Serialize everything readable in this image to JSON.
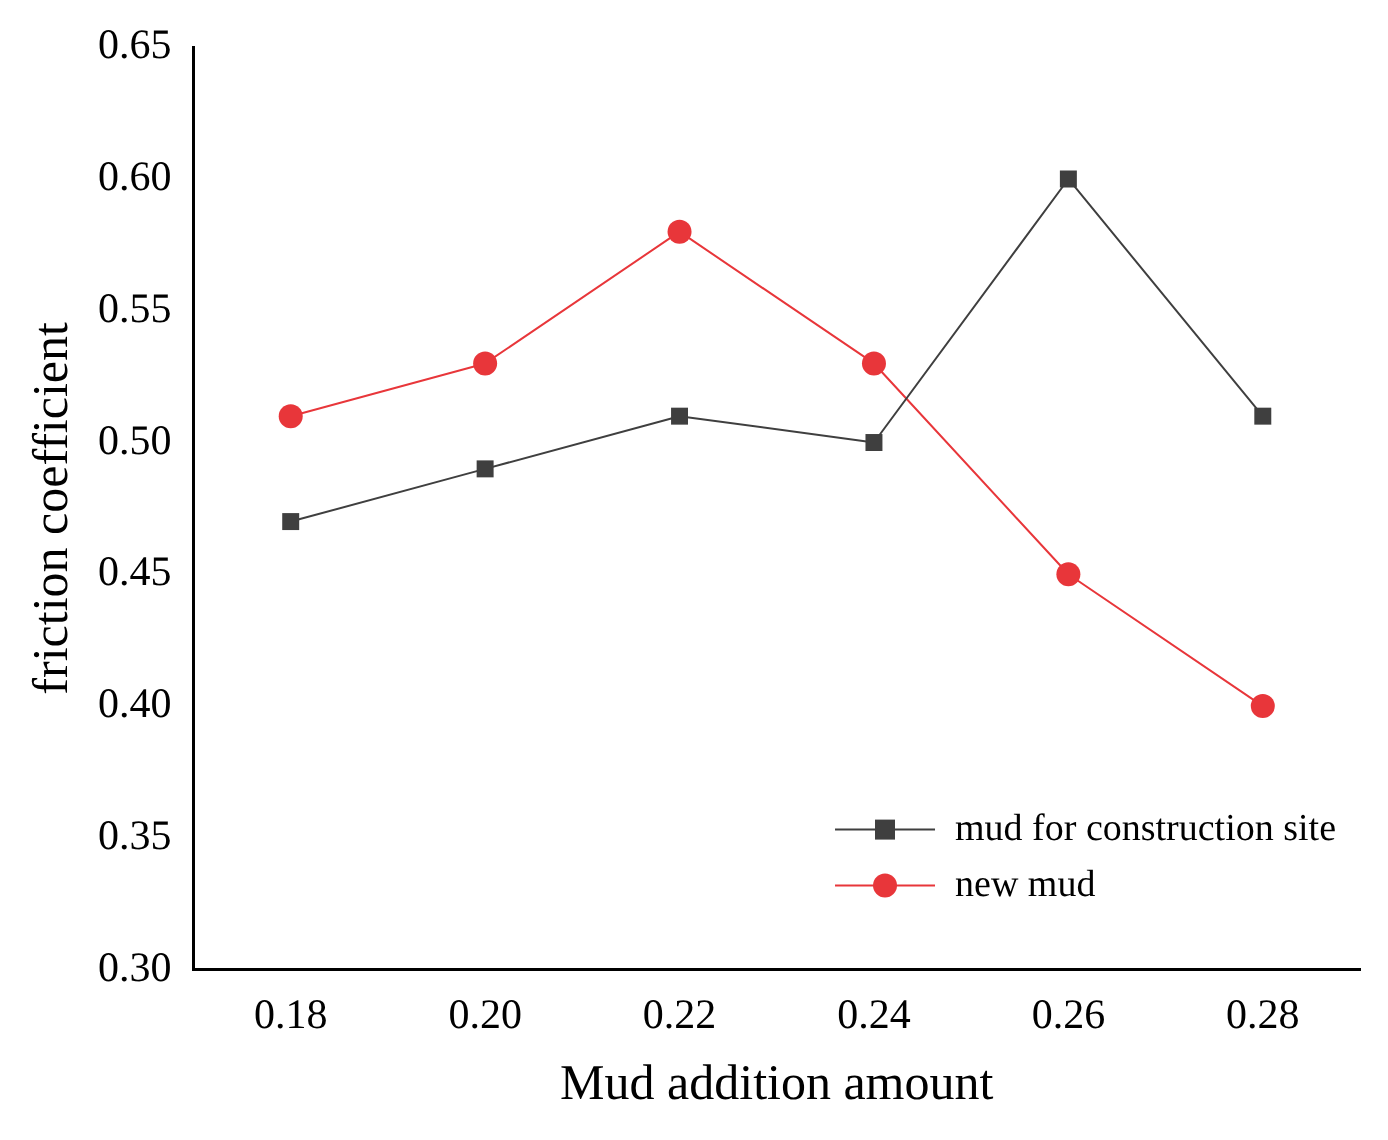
{
  "chart_data": {
    "type": "line",
    "xlabel": "Mud addition amount",
    "ylabel": "friction coefficient",
    "x": [
      0.18,
      0.2,
      0.22,
      0.24,
      0.26,
      0.28
    ],
    "series": [
      {
        "name": "mud for construction site",
        "color": "#3f3f3f",
        "marker": "square",
        "values": [
          0.47,
          0.49,
          0.51,
          0.5,
          0.6,
          0.51
        ]
      },
      {
        "name": "new mud",
        "color": "#e8363a",
        "marker": "circle",
        "values": [
          0.51,
          0.53,
          0.58,
          0.53,
          0.45,
          0.4
        ]
      }
    ],
    "xlim": [
      0.17,
      0.29
    ],
    "xticks": [
      {
        "value": 0.18,
        "label": "0.18"
      },
      {
        "value": 0.2,
        "label": "0.20"
      },
      {
        "value": 0.22,
        "label": "0.22"
      },
      {
        "value": 0.24,
        "label": "0.24"
      },
      {
        "value": 0.26,
        "label": "0.26"
      },
      {
        "value": 0.28,
        "label": "0.28"
      }
    ],
    "ylim": [
      0.3,
      0.65
    ],
    "yticks": [
      {
        "value": 0.3,
        "label": "0.30"
      },
      {
        "value": 0.35,
        "label": "0.35"
      },
      {
        "value": 0.4,
        "label": "0.40"
      },
      {
        "value": 0.45,
        "label": "0.45"
      },
      {
        "value": 0.5,
        "label": "0.50"
      },
      {
        "value": 0.55,
        "label": "0.55"
      },
      {
        "value": 0.6,
        "label": "0.60"
      },
      {
        "value": 0.65,
        "label": "0.65"
      }
    ],
    "grid": false,
    "legend": "bottom right",
    "line_style": "solid"
  }
}
